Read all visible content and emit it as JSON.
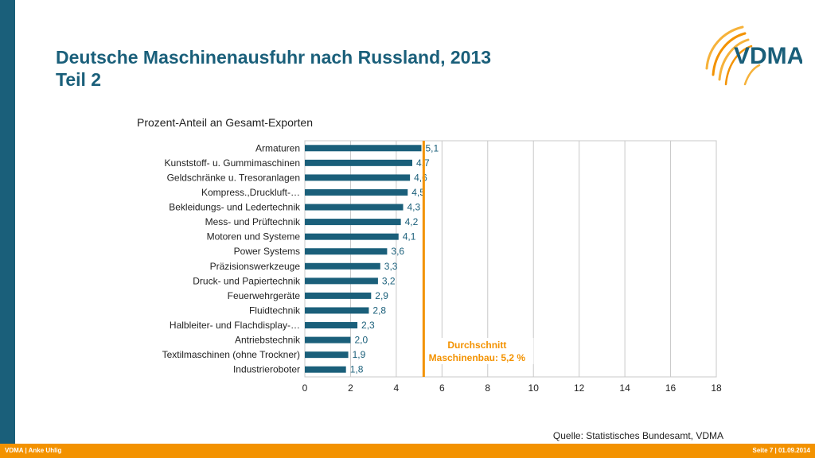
{
  "slide": {
    "title_line1": "Deutsche Maschinenausfuhr nach Russland, 2013",
    "title_line2": "Teil 2",
    "logo_text": "VDMA",
    "source": "Quelle: Statistisches Bundesamt, VDMA",
    "footer_left": "VDMA | Anke Uhlig",
    "footer_right": "Seite 7 | 01.09.2014"
  },
  "colors": {
    "brand_blue": "#1a5f7a",
    "accent_orange": "#f39200",
    "bar": "#1a5f7a",
    "average_line": "#f39200"
  },
  "chart_data": {
    "type": "bar",
    "orientation": "horizontal",
    "title": "Prozent-Anteil an Gesamt-Exporten",
    "categories": [
      "Armaturen",
      "Kunststoff- u. Gummimaschinen",
      "Geldschränke u. Tresoranlagen",
      "Kompress.,Druckluft-…",
      "Bekleidungs- und Ledertechnik",
      "Mess- und Prüftechnik",
      "Motoren und Systeme",
      "Power Systems",
      "Präzisionswerkzeuge",
      "Druck- und Papiertechnik",
      "Feuerwehrgeräte",
      "Fluidtechnik",
      "Halbleiter- und Flachdisplay-…",
      "Antriebstechnik",
      "Textilmaschinen (ohne Trockner)",
      "Industrieroboter"
    ],
    "values": [
      5.1,
      4.7,
      4.6,
      4.5,
      4.3,
      4.2,
      4.1,
      3.6,
      3.3,
      3.2,
      2.9,
      2.8,
      2.3,
      2.0,
      1.9,
      1.8
    ],
    "value_labels": [
      "5,1",
      "4,7",
      "4,6",
      "4,5",
      "4,3",
      "4,2",
      "4,1",
      "3,6",
      "3,3",
      "3,2",
      "2,9",
      "2,8",
      "2,3",
      "2,0",
      "1,9",
      "1,8"
    ],
    "xlim": [
      0,
      18
    ],
    "xticks": [
      0,
      2,
      4,
      6,
      8,
      10,
      12,
      14,
      16,
      18
    ],
    "grid": true,
    "reference_line": {
      "value": 5.2,
      "label_line1": "Durchschnitt",
      "label_line2": "Maschinenbau: 5,2 %"
    }
  }
}
